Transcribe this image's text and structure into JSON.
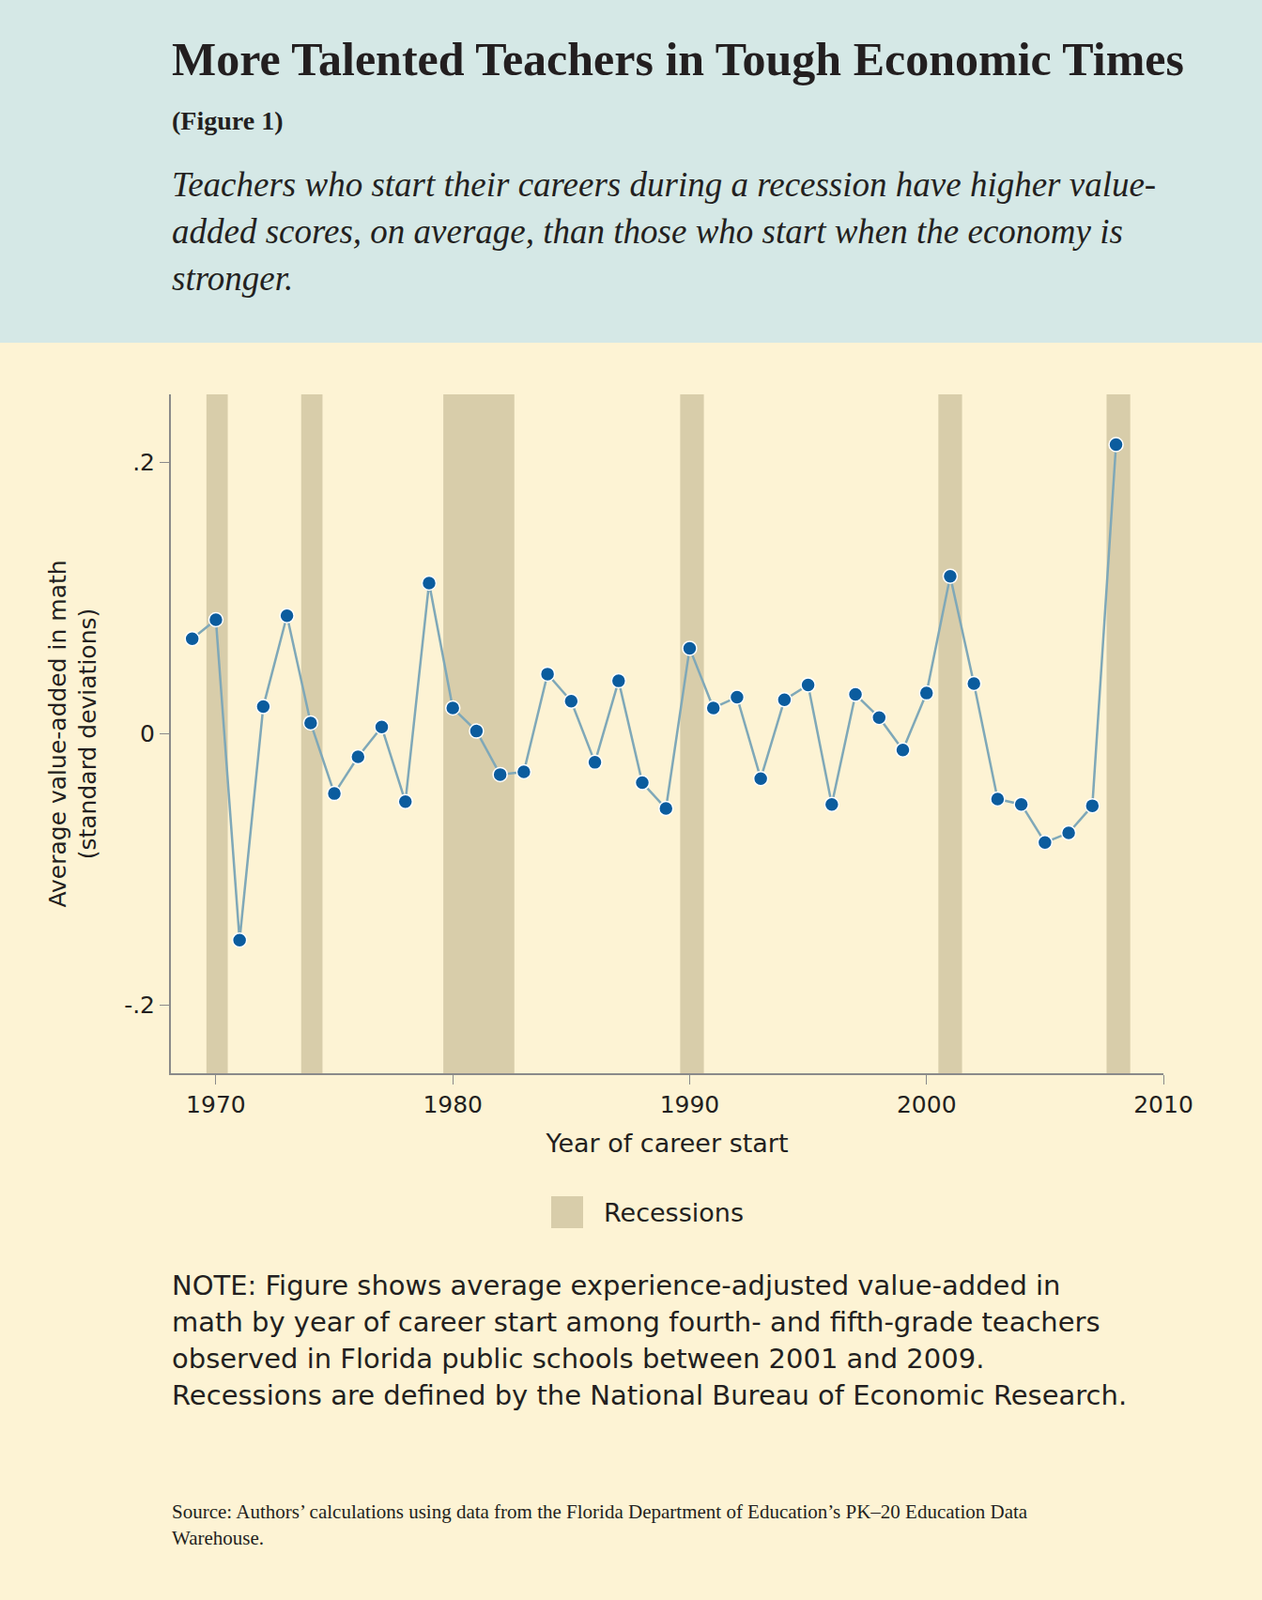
{
  "chart_data": {
    "type": "line",
    "title": "More Talented Teachers in Tough Economic Times",
    "figure_label": "(Figure 1)",
    "subtitle": "Teachers who start their careers during a recession have higher value-added scores, on average, than those who start when the economy is stronger.",
    "xlabel": "Year of career start",
    "ylabel": [
      "Average value-added in math",
      "(standard deviations)"
    ],
    "x": [
      1969,
      1970,
      1971,
      1972,
      1973,
      1974,
      1975,
      1976,
      1977,
      1978,
      1979,
      1980,
      1981,
      1982,
      1983,
      1984,
      1985,
      1986,
      1987,
      1988,
      1989,
      1990,
      1991,
      1992,
      1993,
      1994,
      1995,
      1996,
      1997,
      1998,
      1999,
      2000,
      2001,
      2002,
      2003,
      2004,
      2005,
      2006,
      2007,
      2008
    ],
    "values": [
      0.07,
      0.084,
      -0.152,
      0.02,
      0.087,
      0.008,
      -0.044,
      -0.017,
      0.005,
      -0.05,
      0.111,
      0.019,
      0.002,
      -0.03,
      -0.028,
      0.044,
      0.024,
      -0.021,
      0.039,
      -0.036,
      -0.055,
      0.063,
      0.019,
      0.027,
      -0.033,
      0.025,
      0.036,
      -0.052,
      0.029,
      0.012,
      -0.012,
      0.03,
      0.116,
      0.037,
      -0.048,
      -0.052,
      -0.08,
      -0.073,
      -0.053,
      0.213
    ],
    "color": "#7fa8b8",
    "marker": "circle",
    "recessions": [
      [
        1969.6,
        1970.5
      ],
      [
        1973.6,
        1974.5
      ],
      [
        1979.6,
        1982.6
      ],
      [
        1989.6,
        1990.6
      ],
      [
        2000.5,
        2001.5
      ],
      [
        2007.6,
        2008.6
      ]
    ],
    "recession_label": "Recessions",
    "xlim": [
      1968.1,
      2010
    ],
    "xticks": [
      1970,
      1980,
      1990,
      2000,
      2010
    ],
    "ylim": [
      -0.25,
      0.25
    ],
    "yticks": [
      {
        "value": -0.2,
        "label": "-.2"
      },
      0,
      {
        "value": 0.2,
        "label": ".2"
      }
    ],
    "grid": false,
    "note": "NOTE: Figure shows average experience-adjusted value-added in math by year of career start among fourth- and fifth-grade teachers observed in Florida public schools between 2001 and 2009. Recessions are defined by the National Bureau of Economic Research.",
    "source": "Source: Authors’ calculations using data from the Florida Department of Education’s PK–20 Education Data Warehouse."
  }
}
